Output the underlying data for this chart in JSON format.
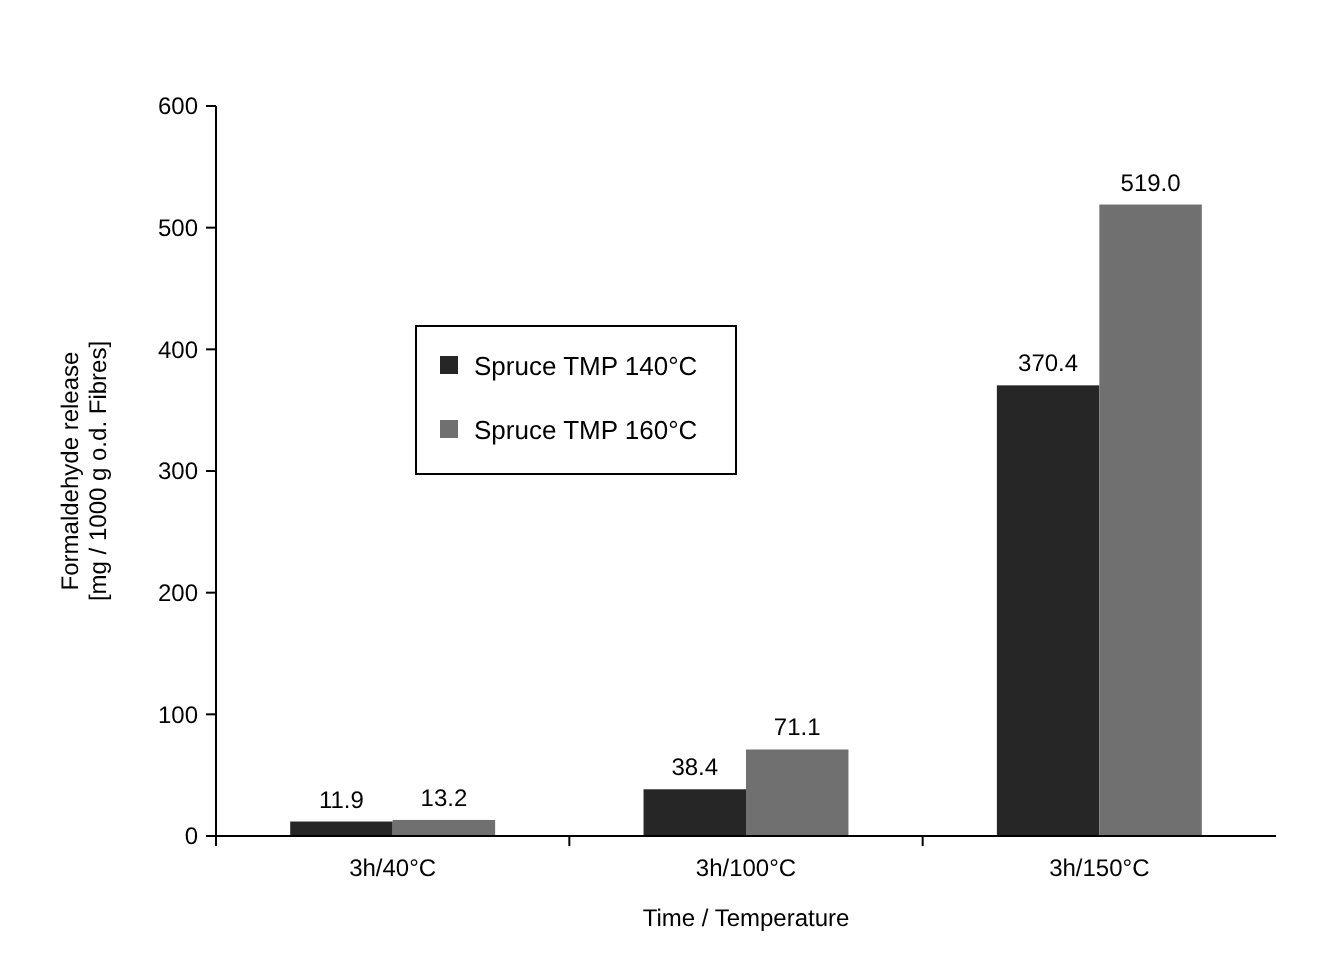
{
  "chart_data": {
    "type": "bar",
    "xlabel": "Time / Temperature",
    "ylabel": "Formaldehyde release\n[mg / 1000 g o.d. Fibres]",
    "categories": [
      "3h/40°C",
      "3h/100°C",
      "3h/150°C"
    ],
    "series": [
      {
        "name": "Spruce TMP 140°C",
        "color": "#262626",
        "values": [
          11.9,
          38.4,
          370.4
        ]
      },
      {
        "name": "Spruce TMP 160°C",
        "color": "#707070",
        "values": [
          13.2,
          71.1,
          519.0
        ]
      }
    ],
    "value_labels": [
      [
        "11.9",
        "38.4",
        "370.4"
      ],
      [
        "13.2",
        "71.1",
        "519.0"
      ]
    ],
    "ylim": [
      0,
      600
    ],
    "yticks": [
      0,
      100,
      200,
      300,
      400,
      500,
      600
    ],
    "grid": false,
    "legend": "left"
  }
}
